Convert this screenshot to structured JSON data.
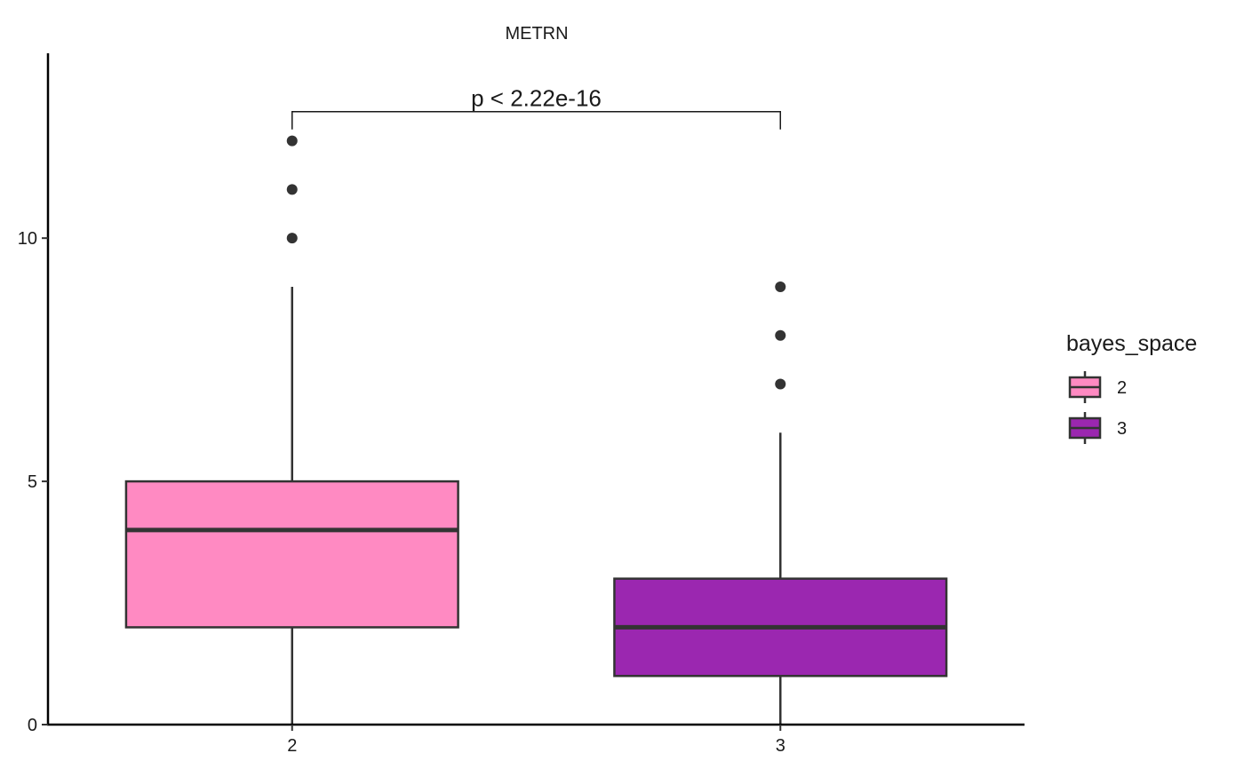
{
  "chart_data": {
    "type": "boxplot",
    "title": "METRN",
    "xlabel": "",
    "ylabel": "",
    "ylim": [
      0,
      13.8
    ],
    "yticks": [
      0,
      5,
      10
    ],
    "categories": [
      "2",
      "3"
    ],
    "boxes": [
      {
        "category": "2",
        "q1": 2,
        "median": 4,
        "q3": 5,
        "whisker_low": 0,
        "whisker_high": 9,
        "outliers": [
          10,
          11,
          12
        ],
        "fill": "#FF8AC2"
      },
      {
        "category": "3",
        "q1": 1,
        "median": 2,
        "q3": 3,
        "whisker_low": 0,
        "whisker_high": 6,
        "outliers": [
          7,
          8,
          9
        ],
        "fill": "#9B27B0"
      }
    ],
    "annotation": {
      "text": "p < 2.22e-16",
      "from": "2",
      "to": "3",
      "y": 12.6
    },
    "legend": {
      "title": "bayes_space",
      "placement": "right",
      "entries": [
        {
          "label": "2",
          "color": "#FF8AC2"
        },
        {
          "label": "3",
          "color": "#9B27B0"
        }
      ]
    }
  }
}
